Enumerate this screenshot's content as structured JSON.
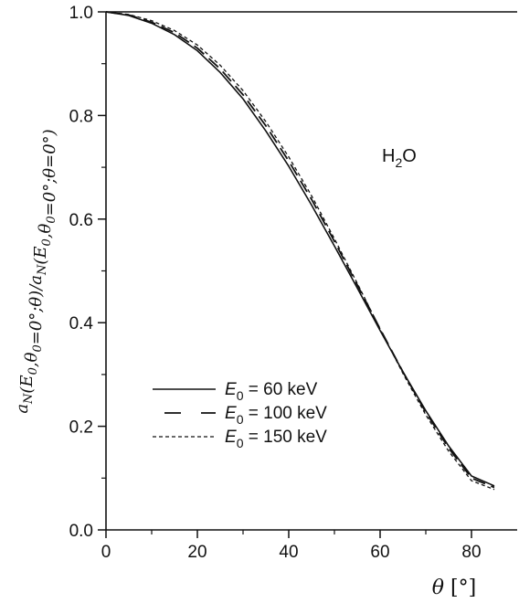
{
  "chart_data": {
    "type": "line",
    "xlabel": "θ [°]",
    "ylabel": "a_N(E_0,θ_0=0°;θ)/a_N(E_0,θ_0=0°;θ=0°)",
    "xlim": [
      0,
      90
    ],
    "ylim": [
      0,
      1.0
    ],
    "x_ticks": [
      0,
      20,
      40,
      60,
      80
    ],
    "x_tick_labels": [
      "0",
      "20",
      "40",
      "60",
      "80"
    ],
    "y_ticks": [
      0,
      0.2,
      0.4,
      0.6,
      0.8,
      1.0
    ],
    "y_tick_labels": [
      "0.0",
      "0.2",
      "0.4",
      "0.6",
      "0.8",
      "1.0"
    ],
    "grid": false,
    "legend_position": "lower-left",
    "annotation": "H2O",
    "x": [
      0,
      5,
      10,
      15,
      20,
      25,
      30,
      35,
      40,
      45,
      50,
      55,
      60,
      65,
      70,
      75,
      80,
      85
    ],
    "series": [
      {
        "name": "E0 = 60 keV",
        "legend_prefix": "E",
        "legend_sub": "0",
        "legend_value": " = 60 keV",
        "dash": "solid",
        "values": [
          1.0,
          0.993,
          0.978,
          0.956,
          0.925,
          0.883,
          0.832,
          0.77,
          0.702,
          0.627,
          0.548,
          0.467,
          0.385,
          0.305,
          0.23,
          0.162,
          0.104,
          0.085
        ]
      },
      {
        "name": "E0 = 100 keV",
        "legend_prefix": "E",
        "legend_sub": "0",
        "legend_value": " = 100 keV",
        "dash": "long-dash",
        "values": [
          1.0,
          0.994,
          0.98,
          0.96,
          0.93,
          0.89,
          0.84,
          0.78,
          0.712,
          0.638,
          0.557,
          0.473,
          0.388,
          0.305,
          0.227,
          0.158,
          0.1,
          0.082
        ]
      },
      {
        "name": "E0 = 150 keV",
        "legend_prefix": "E",
        "legend_sub": "0",
        "legend_value": " = 150 keV",
        "dash": "short-dash",
        "values": [
          1.0,
          0.995,
          0.983,
          0.964,
          0.936,
          0.897,
          0.848,
          0.788,
          0.72,
          0.645,
          0.562,
          0.476,
          0.388,
          0.302,
          0.222,
          0.152,
          0.095,
          0.078
        ]
      }
    ]
  }
}
